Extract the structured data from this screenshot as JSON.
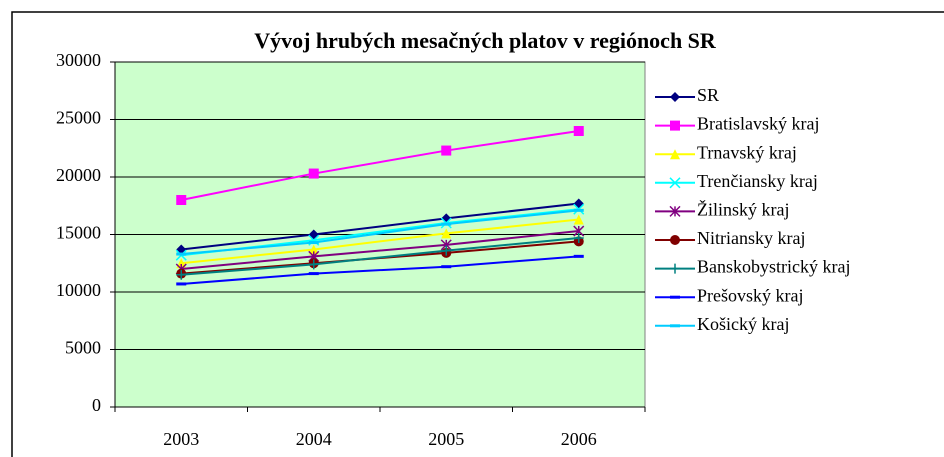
{
  "chart_data": {
    "type": "line",
    "title": "Vývoj hrubých mesačných platov v regiónoch SR",
    "categories": [
      "2003",
      "2004",
      "2005",
      "2006"
    ],
    "ylim": [
      0,
      30000
    ],
    "yticks": [
      0,
      5000,
      10000,
      15000,
      20000,
      25000,
      30000
    ],
    "grid": true,
    "plot_background": "#ccffcc",
    "legend": "right",
    "series": [
      {
        "name": "SR",
        "color": "#000080",
        "marker": "diamond",
        "values": [
          13700,
          15000,
          16400,
          17700
        ]
      },
      {
        "name": "Bratislavský kraj",
        "color": "#ff00ff",
        "marker": "square",
        "values": [
          18000,
          20300,
          22300,
          24000
        ]
      },
      {
        "name": "Trnavský kraj",
        "color": "#ffff00",
        "marker": "triangle",
        "values": [
          12500,
          13700,
          15100,
          16300
        ]
      },
      {
        "name": "Trenčiansky kraj",
        "color": "#00ffff",
        "marker": "x",
        "values": [
          13200,
          14500,
          16000,
          17200
        ]
      },
      {
        "name": "Žilinský kraj",
        "color": "#800080",
        "marker": "star",
        "values": [
          12000,
          13100,
          14100,
          15300
        ]
      },
      {
        "name": "Nitriansky kraj",
        "color": "#800000",
        "marker": "circle",
        "values": [
          11600,
          12500,
          13400,
          14400
        ]
      },
      {
        "name": "Banskobystrický kraj",
        "color": "#008080",
        "marker": "plus",
        "values": [
          11500,
          12400,
          13600,
          14700
        ]
      },
      {
        "name": "Prešovský kraj",
        "color": "#0000ff",
        "marker": "dash",
        "values": [
          10700,
          11600,
          12200,
          13100
        ]
      },
      {
        "name": "Košický kraj",
        "color": "#00ccff",
        "marker": "dash",
        "values": [
          13300,
          14300,
          15900,
          17100
        ]
      }
    ]
  }
}
